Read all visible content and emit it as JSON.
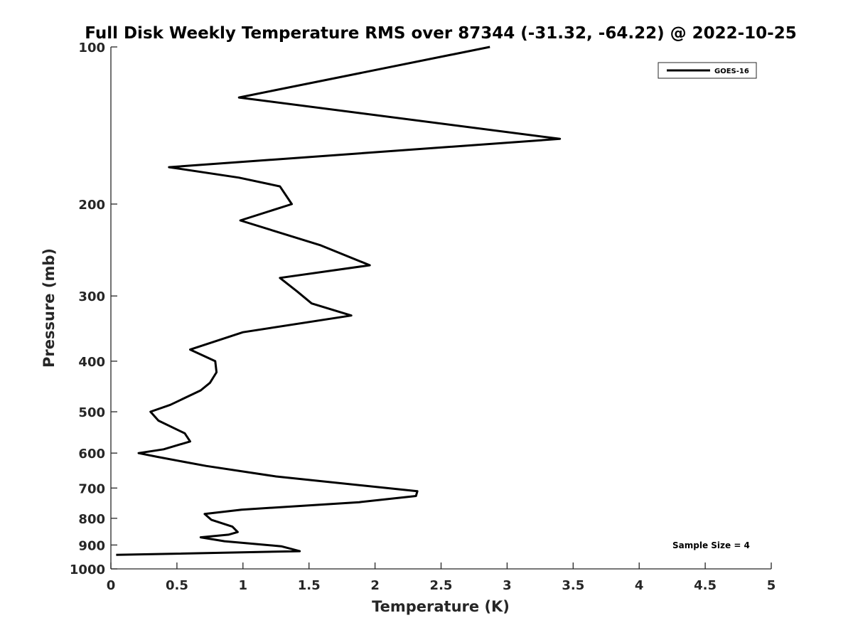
{
  "chart_data": {
    "type": "line",
    "title": "Full Disk Weekly Temperature RMS over 87344 (-31.32, -64.22) @ 2022-10-25",
    "xlabel": "Temperature (K)",
    "ylabel": "Pressure (mb)",
    "xlim": [
      0,
      5
    ],
    "ylim": [
      100,
      1000
    ],
    "y_scale": "log",
    "y_reversed": true,
    "grid": false,
    "legend_position": "top-right",
    "x_ticks": [
      "0",
      "0.5",
      "1",
      "1.5",
      "2",
      "2.5",
      "3",
      "3.5",
      "4",
      "4.5",
      "5"
    ],
    "y_ticks": [
      "100",
      "200",
      "300",
      "400",
      "500",
      "600",
      "700",
      "800",
      "900",
      "1000"
    ],
    "annotation": "Sample Size = 4",
    "colors": {
      "line": "#000000",
      "axis": "#262626"
    },
    "series": [
      {
        "name": "GOES-16",
        "x": [
          2.87,
          0.97,
          3.4,
          0.44,
          0.97,
          1.28,
          1.37,
          0.98,
          1.59,
          1.96,
          1.28,
          1.41,
          1.52,
          1.82,
          1.0,
          0.6,
          0.79,
          0.8,
          0.75,
          0.68,
          0.45,
          0.3,
          0.36,
          0.56,
          0.6,
          0.4,
          0.21,
          0.35,
          0.72,
          1.25,
          2.32,
          2.31,
          1.88,
          0.99,
          0.71,
          0.76,
          0.92,
          0.96,
          0.89,
          0.68,
          0.86,
          1.29,
          1.43,
          0.04
        ],
        "y": [
          100,
          125,
          150,
          170,
          178,
          185,
          200,
          215,
          240,
          262,
          277,
          294,
          310,
          327,
          352,
          380,
          400,
          420,
          440,
          455,
          485,
          500,
          520,
          550,
          570,
          590,
          600,
          610,
          635,
          665,
          710,
          725,
          745,
          770,
          785,
          805,
          830,
          850,
          860,
          870,
          885,
          905,
          925,
          940
        ]
      }
    ]
  }
}
